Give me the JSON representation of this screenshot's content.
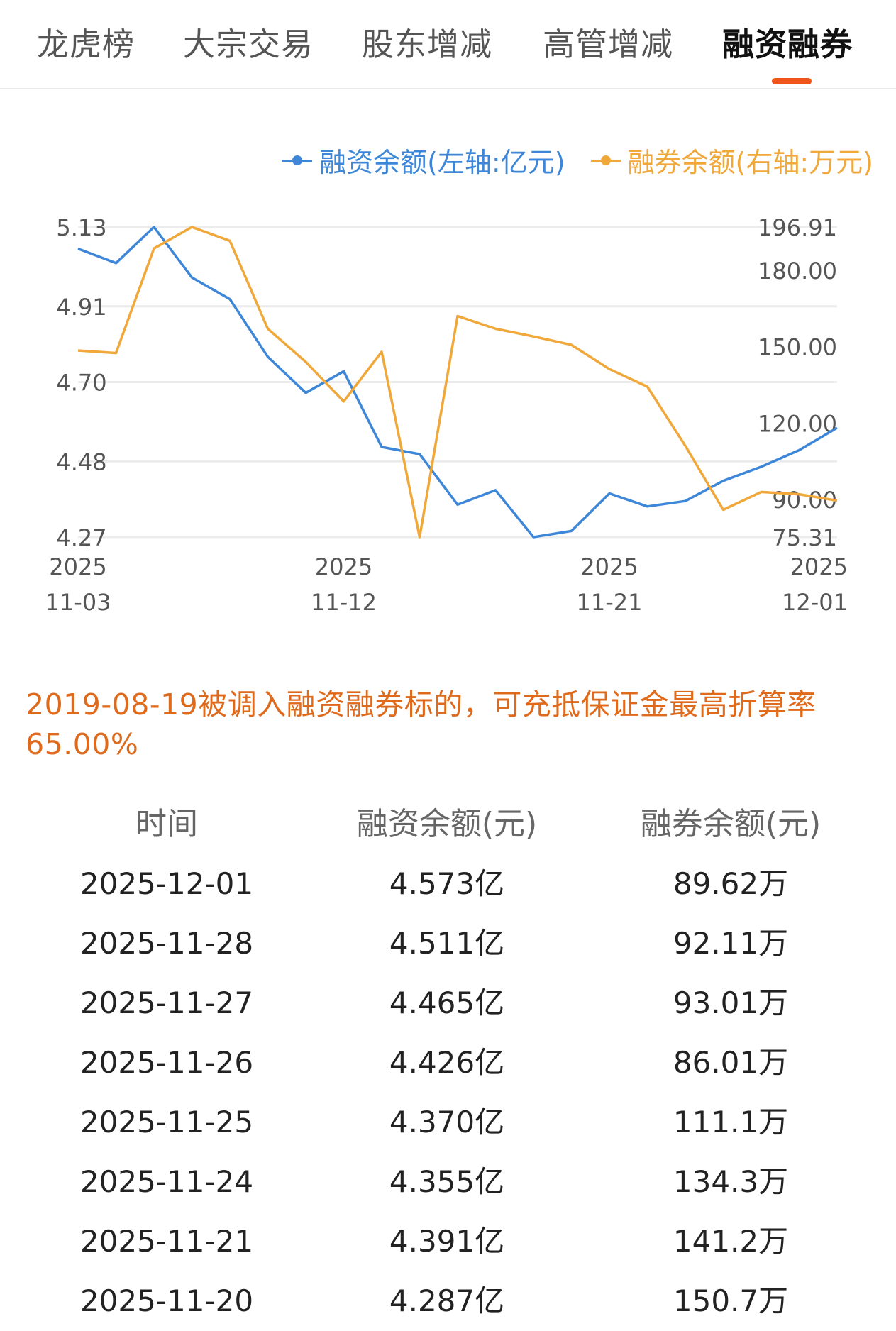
{
  "tabs": [
    {
      "label": "龙虎榜",
      "active": false
    },
    {
      "label": "大宗交易",
      "active": false
    },
    {
      "label": "股东增减",
      "active": false
    },
    {
      "label": "高管增减",
      "active": false
    },
    {
      "label": "融资融券",
      "active": true
    }
  ],
  "colors": {
    "accent": "#f0561c",
    "financing": "#3e87d8",
    "securities_lending": "#f0a83a",
    "note": "#e06a1c"
  },
  "chart_data": {
    "type": "line",
    "legend": {
      "placement": "top-right"
    },
    "grid": true,
    "x": [
      "2025-11-03",
      "2025-11-04",
      "2025-11-05",
      "2025-11-06",
      "2025-11-07",
      "2025-11-10",
      "2025-11-11",
      "2025-11-12",
      "2025-11-13",
      "2025-11-14",
      "2025-11-17",
      "2025-11-18",
      "2025-11-19",
      "2025-11-20",
      "2025-11-21",
      "2025-11-24",
      "2025-11-25",
      "2025-11-26",
      "2025-11-27",
      "2025-11-28",
      "2025-12-01"
    ],
    "x_tick_labels": [
      {
        "year": "2025",
        "date": "11-03"
      },
      {
        "year": "2025",
        "date": "11-12"
      },
      {
        "year": "2025",
        "date": "11-21"
      },
      {
        "year": "2025",
        "date": "12-01"
      }
    ],
    "y_left": {
      "min": 4.27,
      "max": 5.13,
      "ticks": [
        "5.13",
        "4.91",
        "4.70",
        "4.48",
        "4.27"
      ]
    },
    "y_right": {
      "min": 75.31,
      "max": 196.91,
      "ticks": [
        "196.91",
        "180.00",
        "150.00",
        "120.00",
        "90.00",
        "75.31"
      ]
    },
    "series": [
      {
        "name": "融资余额(左轴:亿元)",
        "axis": "left",
        "values": [
          5.07,
          5.03,
          5.13,
          4.99,
          4.93,
          4.77,
          4.67,
          4.73,
          4.52,
          4.5,
          4.36,
          4.4,
          4.27,
          4.287,
          4.391,
          4.355,
          4.37,
          4.426,
          4.465,
          4.511,
          4.573
        ]
      },
      {
        "name": "融券余额(右轴:万元)",
        "axis": "right",
        "values": [
          148.5,
          147.5,
          188.5,
          196.91,
          191.5,
          157.0,
          144.0,
          128.5,
          148.0,
          75.31,
          162.0,
          157.0,
          154.0,
          150.7,
          141.2,
          134.3,
          111.1,
          86.01,
          93.01,
          92.11,
          89.62
        ]
      }
    ]
  },
  "note": "2019-08-19被调入融资融券标的，可充抵保证金最高折算率65.00%",
  "table": {
    "headers": [
      "时间",
      "融资余额(元)",
      "融券余额(元)"
    ],
    "rows": [
      [
        "2025-12-01",
        "4.573亿",
        "89.62万"
      ],
      [
        "2025-11-28",
        "4.511亿",
        "92.11万"
      ],
      [
        "2025-11-27",
        "4.465亿",
        "93.01万"
      ],
      [
        "2025-11-26",
        "4.426亿",
        "86.01万"
      ],
      [
        "2025-11-25",
        "4.370亿",
        "111.1万"
      ],
      [
        "2025-11-24",
        "4.355亿",
        "134.3万"
      ],
      [
        "2025-11-21",
        "4.391亿",
        "141.2万"
      ],
      [
        "2025-11-20",
        "4.287亿",
        "150.7万"
      ]
    ]
  }
}
